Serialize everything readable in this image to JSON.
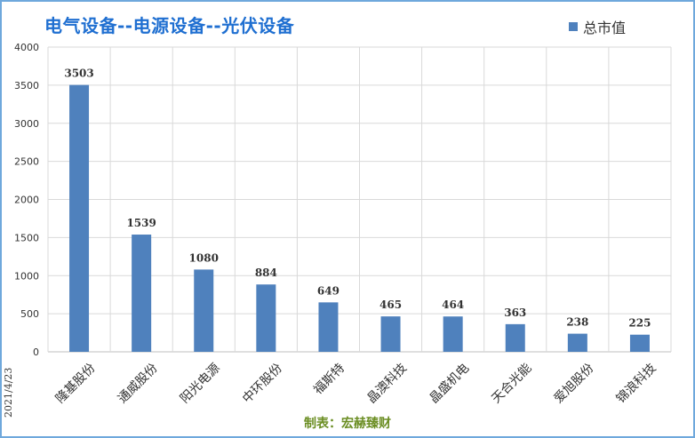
{
  "chart_data": {
    "type": "bar",
    "title": "电气设备--电源设备--光伏设备",
    "categories": [
      "隆基股份",
      "通威股份",
      "阳光电源",
      "中环股份",
      "福斯特",
      "晶澳科技",
      "晶盛机电",
      "天合光能",
      "爱旭股份",
      "锦浪科技"
    ],
    "series": [
      {
        "name": "总市值",
        "values": [
          3503,
          1539,
          1080,
          884,
          649,
          465,
          464,
          363,
          238,
          225
        ],
        "color": "#4f81bd"
      }
    ],
    "ylim": [
      0,
      4000
    ],
    "yticks": [
      0,
      500,
      1000,
      1500,
      2000,
      2500,
      3000,
      3500,
      4000
    ],
    "grid": true,
    "legend_position": "top-right"
  },
  "date_label": "2021/4/23",
  "footer": "制表：宏赫臻财"
}
